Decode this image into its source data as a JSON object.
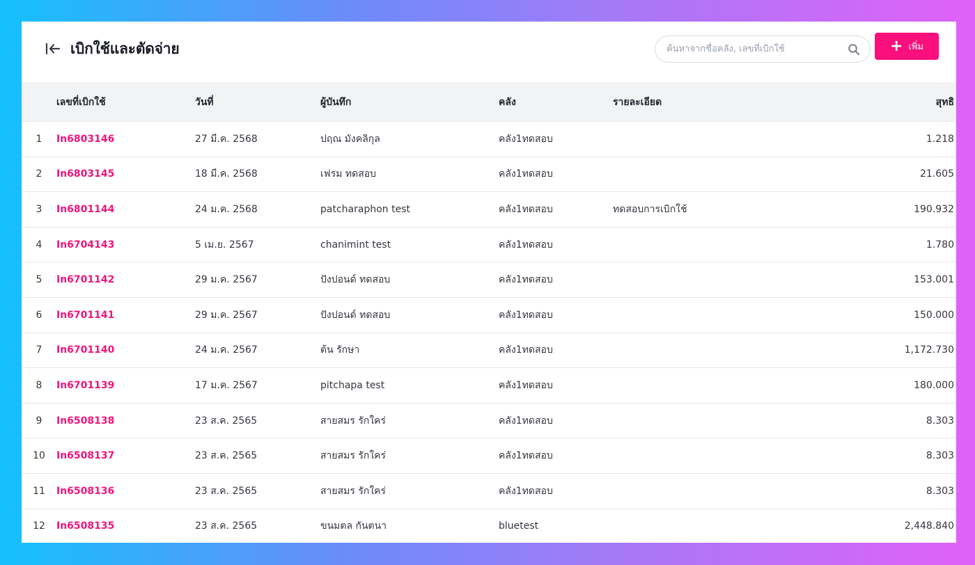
{
  "header": {
    "title": "เบิกใช้และตัดจ่าย",
    "search_placeholder": "ค้นหาจากชื่อคลัง, เลขที่เบิกใช้",
    "add_label": "เพิ่ม"
  },
  "colors": {
    "accent": "#fb0f7c",
    "link": "#f0157b",
    "header_row_bg": "#f2f3f5"
  },
  "icons": {
    "back": "back-to-start-arrow-icon",
    "search": "magnifier-icon",
    "add": "plus-icon"
  },
  "table": {
    "columns": {
      "no": "เลขที่เบิกใช้",
      "date": "วันที่",
      "by": "ผู้บันทึก",
      "warehouse": "คลัง",
      "desc": "รายละเอียด",
      "net": "สุทธิ"
    },
    "rows": [
      {
        "idx": "1",
        "no": "In6803146",
        "date": "27 มี.ค. 2568",
        "by": "ปฤณ มังคลิกุล",
        "warehouse": "คลัง1ทดสอบ",
        "desc": "",
        "net": "1.218"
      },
      {
        "idx": "2",
        "no": "In6803145",
        "date": "18 มี.ค. 2568",
        "by": "เฟรม ทดสอบ",
        "warehouse": "คลัง1ทดสอบ",
        "desc": "",
        "net": "21.605"
      },
      {
        "idx": "3",
        "no": "In6801144",
        "date": "24 ม.ค. 2568",
        "by": "patcharaphon test",
        "warehouse": "คลัง1ทดสอบ",
        "desc": "ทดสอบการเบิกใช้",
        "net": "190.932"
      },
      {
        "idx": "4",
        "no": "In6704143",
        "date": "5 เม.ย. 2567",
        "by": "chanimint test",
        "warehouse": "คลัง1ทดสอบ",
        "desc": "",
        "net": "1.780"
      },
      {
        "idx": "5",
        "no": "In6701142",
        "date": "29 ม.ค. 2567",
        "by": "ปังปอนด์ ทดสอบ",
        "warehouse": "คลัง1ทดสอบ",
        "desc": "",
        "net": "153.001"
      },
      {
        "idx": "6",
        "no": "In6701141",
        "date": "29 ม.ค. 2567",
        "by": "ปังปอนด์ ทดสอบ",
        "warehouse": "คลัง1ทดสอบ",
        "desc": "",
        "net": "150.000"
      },
      {
        "idx": "7",
        "no": "In6701140",
        "date": "24 ม.ค. 2567",
        "by": "ต้น รักษา",
        "warehouse": "คลัง1ทดสอบ",
        "desc": "",
        "net": "1,172.730"
      },
      {
        "idx": "8",
        "no": "In6701139",
        "date": "17 ม.ค. 2567",
        "by": "pitchapa test",
        "warehouse": "คลัง1ทดสอบ",
        "desc": "",
        "net": "180.000"
      },
      {
        "idx": "9",
        "no": "In6508138",
        "date": "23 ส.ค. 2565",
        "by": "สายสมร รักใคร่",
        "warehouse": "คลัง1ทดสอบ",
        "desc": "",
        "net": "8.303"
      },
      {
        "idx": "10",
        "no": "In6508137",
        "date": "23 ส.ค. 2565",
        "by": "สายสมร รักใคร่",
        "warehouse": "คลัง1ทดสอบ",
        "desc": "",
        "net": "8.303"
      },
      {
        "idx": "11",
        "no": "In6508136",
        "date": "23 ส.ค. 2565",
        "by": "สายสมร รักใคร่",
        "warehouse": "คลัง1ทดสอบ",
        "desc": "",
        "net": "8.303"
      },
      {
        "idx": "12",
        "no": "In6508135",
        "date": "23 ส.ค. 2565",
        "by": "ขนมตล กันตนา",
        "warehouse": "bluetest",
        "desc": "",
        "net": "2,448.840"
      }
    ]
  }
}
